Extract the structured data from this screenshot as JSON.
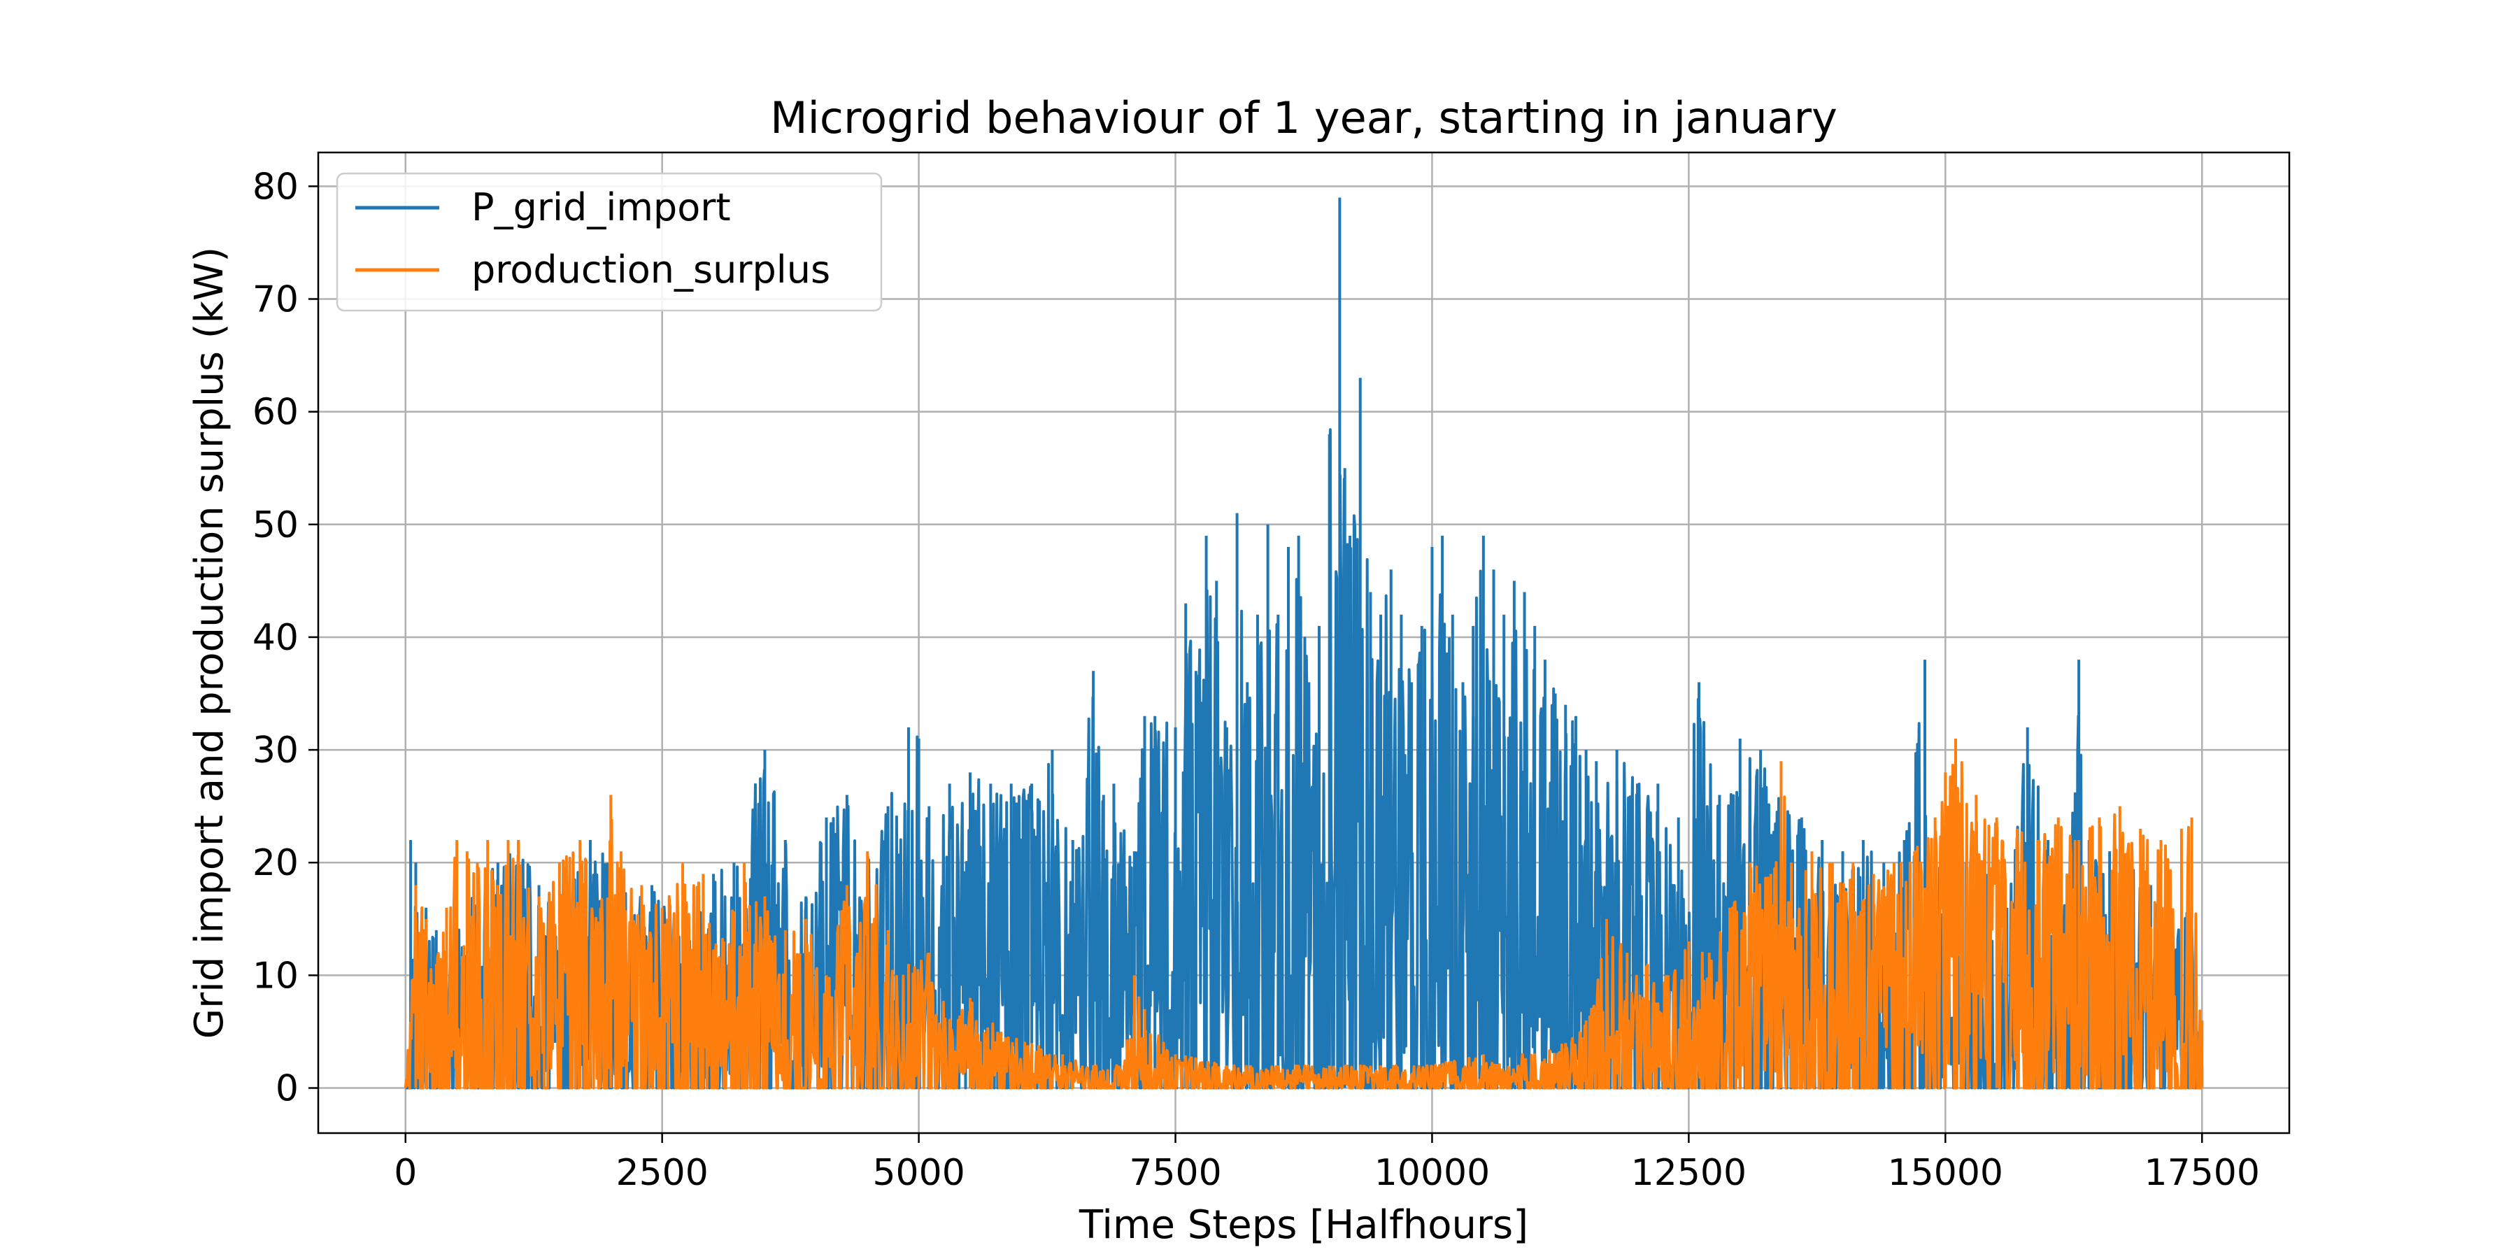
{
  "chart_data": {
    "type": "line",
    "title": "Microgrid behaviour of 1 year, starting in january",
    "xlabel": "Time Steps [Halfhours]",
    "ylabel": "Grid import and production surplus (kW)",
    "xlim": [
      -850,
      18350
    ],
    "ylim": [
      -4,
      83
    ],
    "xticks": [
      0,
      2500,
      5000,
      7500,
      10000,
      12500,
      15000,
      17500
    ],
    "xtick_labels": [
      "0",
      "2500",
      "5000",
      "7500",
      "10000",
      "12500",
      "15000",
      "17500"
    ],
    "yticks": [
      0,
      10,
      20,
      30,
      40,
      50,
      60,
      70,
      80
    ],
    "ytick_labels": [
      "0",
      "10",
      "20",
      "30",
      "40",
      "50",
      "60",
      "70",
      "80"
    ],
    "grid": true,
    "legend_position": "top-left",
    "series": [
      {
        "name": "P_grid_import",
        "color": "#1f77b4",
        "x": [
          0,
          50,
          100,
          200,
          300,
          500,
          700,
          900,
          1100,
          1300,
          1500,
          1800,
          2100,
          2400,
          2700,
          3000,
          3200,
          3500,
          3700,
          3900,
          4100,
          4300,
          4500,
          4700,
          4900,
          5000,
          5100,
          5300,
          5500,
          5700,
          5900,
          6100,
          6300,
          6500,
          6700,
          6800,
          6900,
          7100,
          7200,
          7300,
          7500,
          7600,
          7700,
          7800,
          7900,
          8000,
          8100,
          8200,
          8300,
          8400,
          8500,
          8600,
          8700,
          8800,
          8900,
          9000,
          9100,
          9150,
          9200,
          9300,
          9400,
          9500,
          9600,
          9700,
          9800,
          9900,
          10000,
          10100,
          10200,
          10300,
          10400,
          10500,
          10600,
          10700,
          10800,
          10900,
          11000,
          11100,
          11200,
          11300,
          11400,
          11500,
          11600,
          11800,
          12000,
          12200,
          12400,
          12600,
          12800,
          13000,
          13200,
          13400,
          13600,
          13800,
          14000,
          14200,
          14400,
          14600,
          14800,
          14900,
          15000,
          15200,
          15400,
          15600,
          15800,
          16000,
          16200,
          16300,
          16400,
          16600,
          16800,
          17000,
          17200,
          17400,
          17500
        ],
        "values": [
          0,
          22,
          20,
          16,
          14,
          14,
          18,
          20,
          22,
          18,
          16,
          22,
          19,
          18,
          15,
          19,
          20,
          30,
          22,
          17,
          24,
          26,
          20,
          25,
          32,
          31,
          25,
          27,
          28,
          27,
          27,
          27,
          30,
          22,
          37,
          26,
          27,
          21,
          33,
          33,
          32,
          43,
          37,
          49,
          45,
          32,
          51,
          36,
          42,
          50,
          42,
          48,
          49,
          36,
          41,
          58,
          79,
          55,
          49,
          63,
          44,
          42,
          46,
          42,
          36,
          41,
          48,
          49,
          42,
          36,
          41,
          49,
          46,
          42,
          45,
          44,
          41,
          38,
          35,
          34,
          33,
          30,
          29,
          30,
          27,
          27,
          24,
          36,
          26,
          31,
          30,
          27,
          24,
          22,
          21,
          22,
          20,
          22,
          38,
          22,
          18,
          20,
          19,
          16,
          32,
          22,
          18,
          38,
          22,
          21,
          20,
          18,
          14,
          16,
          2
        ]
      },
      {
        "name": "production_surplus",
        "color": "#ff7f0e",
        "x": [
          0,
          100,
          200,
          300,
          400,
          500,
          600,
          700,
          800,
          900,
          1000,
          1100,
          1300,
          1500,
          1700,
          1900,
          2000,
          2100,
          2300,
          2500,
          2700,
          2900,
          3100,
          3300,
          3500,
          3700,
          3900,
          4100,
          4300,
          4400,
          4500,
          4700,
          4900,
          5100,
          5300,
          5500,
          5800,
          6100,
          6400,
          6700,
          7000,
          7100,
          7200,
          7500,
          8000,
          8500,
          9000,
          9500,
          10000,
          10500,
          11000,
          11300,
          11500,
          11700,
          11900,
          12100,
          12300,
          12500,
          12700,
          12900,
          13100,
          13300,
          13400,
          13500,
          13700,
          13900,
          14100,
          14300,
          14500,
          14700,
          14900,
          15000,
          15100,
          15300,
          15500,
          15700,
          15900,
          16100,
          16300,
          16500,
          16700,
          16900,
          17100,
          17300,
          17400,
          17500
        ],
        "values": [
          0,
          18,
          15,
          11,
          16,
          22,
          21,
          20,
          22,
          18,
          22,
          22,
          17,
          20,
          22,
          16,
          26,
          21,
          18,
          16,
          20,
          19,
          13,
          20,
          17,
          14,
          15,
          10,
          18,
          12,
          21,
          14,
          11,
          12,
          6,
          8,
          5,
          4,
          3,
          2,
          2,
          10,
          7,
          3,
          2,
          2,
          2,
          2,
          2,
          3,
          3,
          4,
          6,
          15,
          12,
          11,
          10,
          13,
          12,
          16,
          20,
          19,
          29,
          20,
          21,
          20,
          20,
          19,
          20,
          21,
          24,
          28,
          31,
          26,
          24,
          23,
          22,
          24,
          22,
          24,
          25,
          23,
          22,
          23,
          24,
          6
        ]
      }
    ]
  }
}
